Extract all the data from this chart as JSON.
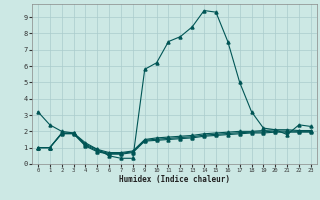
{
  "xlabel": "Humidex (Indice chaleur)",
  "background_color": "#cce8e4",
  "grid_color": "#aacccc",
  "line_color": "#005555",
  "x": [
    0,
    1,
    2,
    3,
    4,
    5,
    6,
    7,
    8,
    9,
    10,
    11,
    12,
    13,
    14,
    15,
    16,
    17,
    18,
    19,
    20,
    21,
    22,
    23
  ],
  "line1": [
    3.2,
    2.4,
    2.0,
    1.9,
    1.3,
    0.9,
    0.5,
    0.35,
    0.35,
    5.8,
    6.2,
    7.5,
    7.8,
    8.4,
    9.4,
    9.3,
    7.5,
    5.0,
    3.2,
    2.2,
    2.1,
    1.8,
    2.4,
    2.3
  ],
  "line2": [
    1.0,
    1.0,
    1.9,
    1.9,
    1.2,
    0.9,
    0.7,
    0.7,
    0.8,
    1.5,
    1.6,
    1.65,
    1.7,
    1.75,
    1.85,
    1.9,
    1.95,
    2.0,
    2.0,
    2.05,
    2.1,
    2.1,
    2.05,
    2.05
  ],
  "line3": [
    1.0,
    1.0,
    1.85,
    1.85,
    1.1,
    0.75,
    0.6,
    0.6,
    0.7,
    1.4,
    1.45,
    1.5,
    1.55,
    1.6,
    1.7,
    1.75,
    1.8,
    1.85,
    1.9,
    1.9,
    1.95,
    1.95,
    1.95,
    1.95
  ],
  "line4": [
    1.0,
    1.0,
    1.87,
    1.87,
    1.15,
    0.82,
    0.65,
    0.65,
    0.75,
    1.45,
    1.52,
    1.57,
    1.62,
    1.67,
    1.77,
    1.82,
    1.87,
    1.92,
    1.95,
    1.97,
    2.02,
    2.02,
    2.0,
    2.0
  ],
  "ylim": [
    0,
    9.8
  ],
  "xlim": [
    -0.5,
    23.5
  ],
  "yticks": [
    0,
    1,
    2,
    3,
    4,
    5,
    6,
    7,
    8,
    9
  ],
  "xticks": [
    0,
    1,
    2,
    3,
    4,
    5,
    6,
    7,
    8,
    9,
    10,
    11,
    12,
    13,
    14,
    15,
    16,
    17,
    18,
    19,
    20,
    21,
    22,
    23
  ]
}
